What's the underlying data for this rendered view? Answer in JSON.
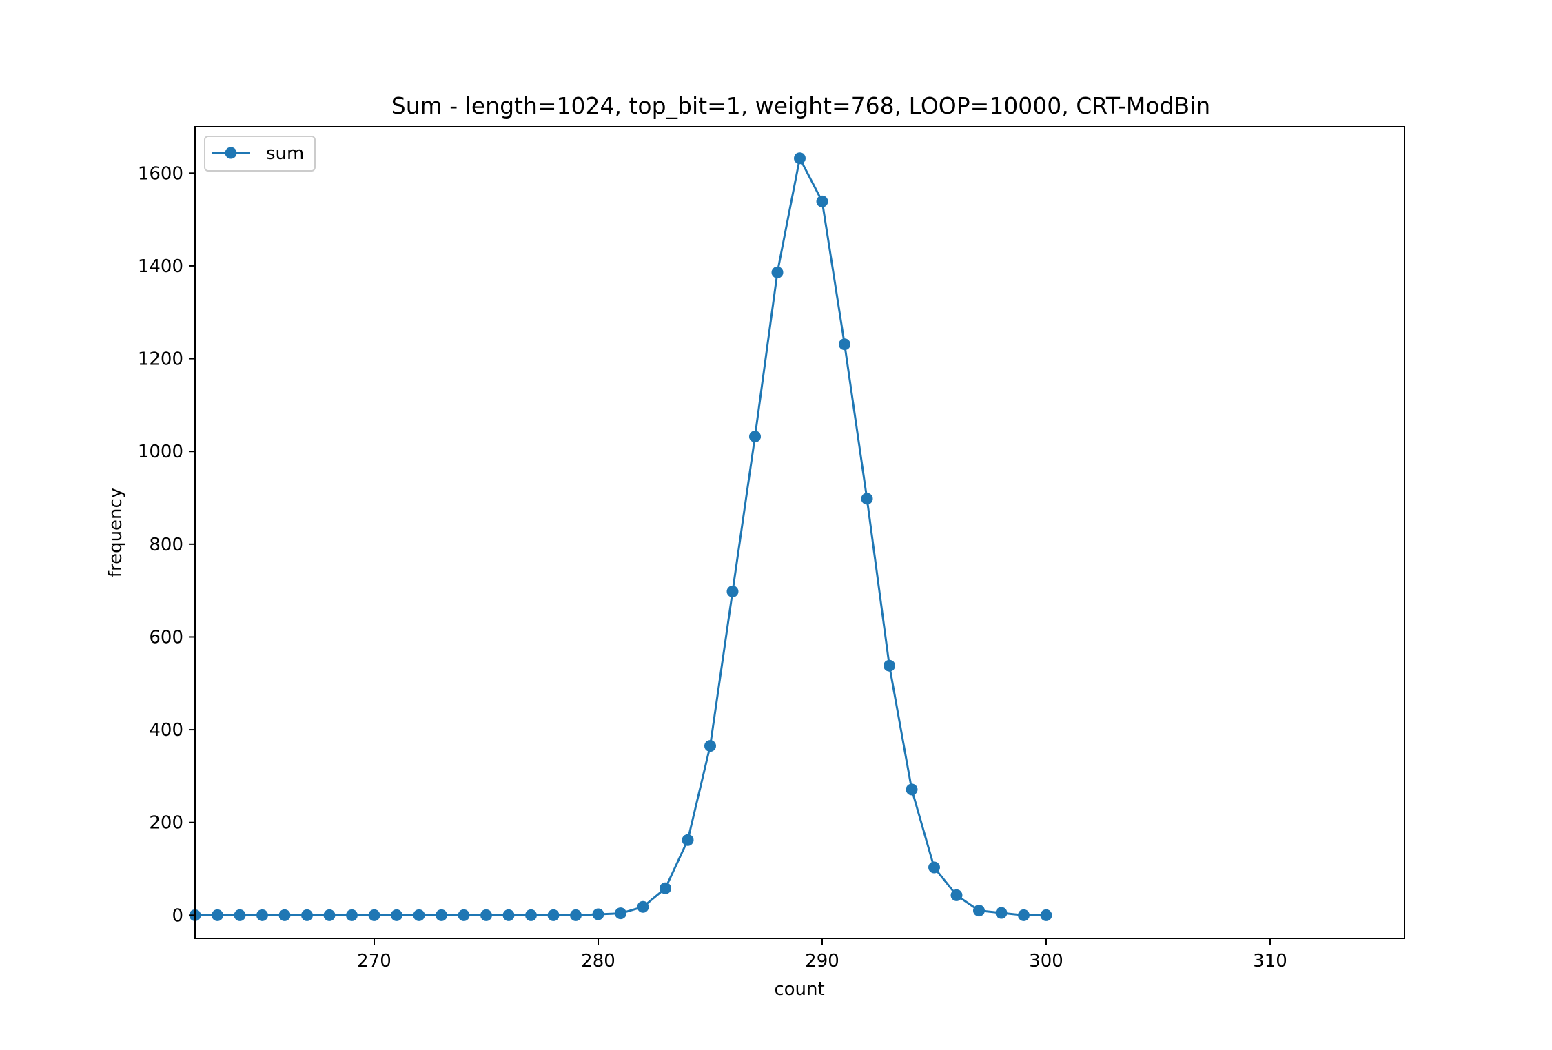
{
  "chart_data": {
    "type": "line",
    "title": "Sum - length=1024, top_bit=1, weight=768, LOOP=10000, CRT-ModBin",
    "xlabel": "count",
    "ylabel": "frequency",
    "xlim": [
      262,
      316
    ],
    "ylim": [
      -50,
      1700
    ],
    "xticks": [
      270,
      280,
      290,
      300,
      310
    ],
    "yticks": [
      0,
      200,
      400,
      600,
      800,
      1000,
      1200,
      1400,
      1600
    ],
    "grid": false,
    "legend_position": "upper-left",
    "series": [
      {
        "name": "sum",
        "color": "#1f77b4",
        "marker": "circle",
        "x": [
          262,
          263,
          264,
          265,
          266,
          267,
          268,
          269,
          270,
          271,
          272,
          273,
          274,
          275,
          276,
          277,
          278,
          279,
          280,
          281,
          282,
          283,
          284,
          285,
          286,
          287,
          288,
          289,
          290,
          291,
          292,
          293,
          294,
          295,
          296,
          297,
          298,
          299,
          300
        ],
        "y": [
          0,
          0,
          0,
          0,
          0,
          0,
          0,
          0,
          0,
          0,
          0,
          0,
          0,
          0,
          0,
          0,
          0,
          0,
          2,
          4,
          18,
          58,
          162,
          365,
          698,
          1032,
          1386,
          1632,
          1539,
          1231,
          898,
          538,
          271,
          103,
          43,
          10,
          5,
          0,
          0
        ]
      }
    ]
  }
}
